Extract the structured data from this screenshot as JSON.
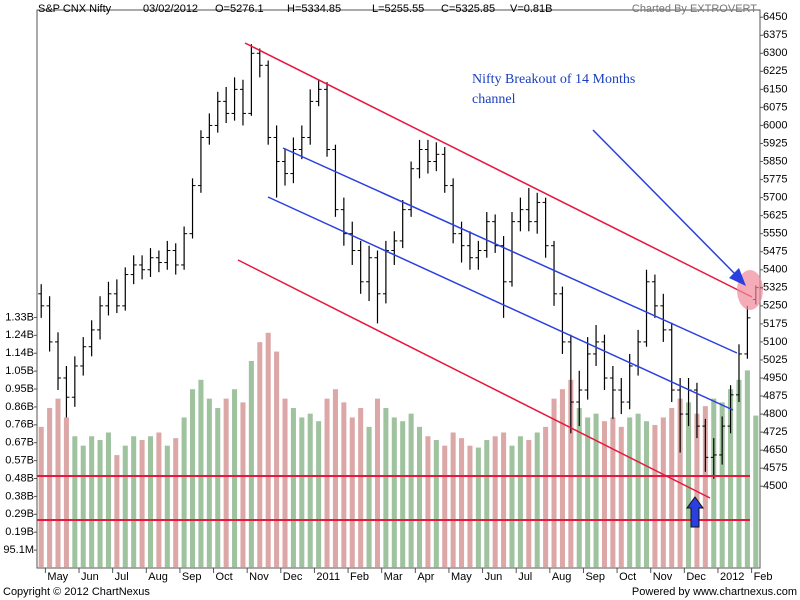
{
  "header": {
    "name": "S&P CNX Nifty",
    "date": "03/02/2012",
    "open": "O=5276.1",
    "high": "H=5334.85",
    "low": "L=5255.55",
    "close": "C=5325.85",
    "volume": "V=0.81B",
    "credit": "Charted By EXTROVERT"
  },
  "footer": {
    "copyright": "Copyright © 2012 ChartNexus",
    "powered": "Powered by www.chartnexus.com"
  },
  "chart_data": {
    "type": "ohlc",
    "annotations": [
      "Nifty Breakout of 14 Months",
      "channel"
    ],
    "categories": [
      null,
      "May",
      null,
      null,
      null,
      "Jun",
      null,
      null,
      null,
      "Jul",
      null,
      null,
      null,
      "Aug",
      null,
      null,
      null,
      "Sep",
      null,
      null,
      null,
      "Oct",
      null,
      null,
      null,
      "Nov",
      null,
      null,
      null,
      "Dec",
      null,
      null,
      null,
      "2011",
      null,
      null,
      null,
      "Feb",
      null,
      null,
      null,
      "Mar",
      null,
      null,
      null,
      "Apr",
      null,
      null,
      null,
      "May",
      null,
      null,
      null,
      "Jun",
      null,
      null,
      null,
      "Jul",
      null,
      null,
      null,
      "Aug",
      null,
      null,
      null,
      "Sep",
      null,
      null,
      null,
      "Oct",
      null,
      null,
      null,
      "Nov",
      null,
      null,
      null,
      "Dec",
      null,
      null,
      null,
      "2012",
      null,
      null,
      null,
      "Feb"
    ],
    "open": [
      5300,
      5250,
      5100,
      4950,
      4870,
      5000,
      5080,
      5150,
      5250,
      5300,
      5250,
      5380,
      5420,
      5400,
      5450,
      5430,
      5480,
      5420,
      5550,
      5750,
      5950,
      6000,
      6100,
      6050,
      6150,
      6050,
      6300,
      6250,
      5950,
      5850,
      5800,
      5900,
      5950,
      6100,
      6150,
      5900,
      5650,
      5550,
      5480,
      5350,
      5450,
      5300,
      5480,
      5520,
      5650,
      5820,
      5900,
      5850,
      5880,
      5750,
      5550,
      5500,
      5450,
      5480,
      5600,
      5500,
      5350,
      5600,
      5650,
      5600,
      5680,
      5500,
      5300,
      5100,
      4850,
      4900,
      5050,
      5100,
      4950,
      4900,
      4850,
      5000,
      5100,
      5350,
      5250,
      5150,
      4900,
      4800,
      4900,
      4750,
      4620,
      4630,
      4750,
      4880,
      5050,
      5276.1
    ],
    "high": [
      5340,
      5290,
      5140,
      5000,
      5040,
      5120,
      5190,
      5290,
      5350,
      5360,
      5410,
      5460,
      5460,
      5490,
      5480,
      5520,
      5510,
      5580,
      5780,
      5980,
      6050,
      6140,
      6160,
      6200,
      6190,
      6338,
      6320,
      6270,
      6000,
      5900,
      5950,
      6000,
      6150,
      6190,
      6180,
      5920,
      5700,
      5600,
      5520,
      5500,
      5480,
      5520,
      5560,
      5690,
      5850,
      5940,
      5940,
      5930,
      5910,
      5780,
      5600,
      5560,
      5520,
      5640,
      5630,
      5540,
      5640,
      5700,
      5740,
      5720,
      5700,
      5520,
      5330,
      5130,
      4980,
      5120,
      5170,
      5130,
      5000,
      4950,
      5050,
      5150,
      5400,
      5380,
      5300,
      5180,
      4950,
      4950,
      4930,
      4780,
      4700,
      4790,
      4920,
      5090,
      5250,
      5334.85
    ],
    "low": [
      5200,
      5060,
      4900,
      4786,
      4830,
      4960,
      5040,
      5110,
      5210,
      5220,
      5230,
      5340,
      5360,
      5370,
      5390,
      5400,
      5380,
      5400,
      5530,
      5720,
      5920,
      5970,
      6010,
      6020,
      6000,
      6040,
      6200,
      5920,
      5700,
      5750,
      5760,
      5860,
      5920,
      6080,
      5870,
      5620,
      5500,
      5420,
      5300,
      5270,
      5177,
      5260,
      5420,
      5490,
      5620,
      5780,
      5800,
      5810,
      5720,
      5510,
      5430,
      5400,
      5400,
      5450,
      5470,
      5200,
      5330,
      5560,
      5560,
      5550,
      5450,
      5250,
      5050,
      4720,
      4750,
      4860,
      5000,
      4900,
      4780,
      4800,
      4820,
      4960,
      5080,
      5200,
      5100,
      4850,
      4640,
      4750,
      4700,
      4560,
      4531,
      4590,
      4720,
      4850,
      5030,
      5255.55
    ],
    "close": [
      5250,
      5100,
      4950,
      4870,
      5000,
      5080,
      5150,
      5250,
      5300,
      5250,
      5380,
      5420,
      5400,
      5450,
      5430,
      5480,
      5420,
      5550,
      5750,
      5950,
      6000,
      6100,
      6050,
      6150,
      6050,
      6300,
      6250,
      5950,
      5850,
      5800,
      5900,
      5950,
      6100,
      6150,
      5900,
      5650,
      5550,
      5480,
      5350,
      5450,
      5300,
      5480,
      5520,
      5650,
      5820,
      5900,
      5850,
      5880,
      5750,
      5550,
      5500,
      5450,
      5480,
      5600,
      5500,
      5350,
      5600,
      5650,
      5600,
      5680,
      5500,
      5300,
      5100,
      4850,
      4900,
      5050,
      5100,
      4950,
      4900,
      4850,
      5000,
      5100,
      5350,
      5250,
      5150,
      4900,
      4800,
      4900,
      4750,
      4620,
      4630,
      4750,
      4880,
      5050,
      5200,
      5325.85
    ],
    "volume": [
      750000000,
      850000000,
      900000000,
      800000000,
      700000000,
      650000000,
      700000000,
      680000000,
      720000000,
      600000000,
      650000000,
      700000000,
      680000000,
      700000000,
      720000000,
      650000000,
      690000000,
      800000000,
      950000000,
      1000000000,
      900000000,
      850000000,
      900000000,
      950000000,
      880000000,
      1100000000,
      1200000000,
      1250000000,
      1150000000,
      900000000,
      850000000,
      800000000,
      820000000,
      780000000,
      900000000,
      950000000,
      880000000,
      800000000,
      850000000,
      750000000,
      900000000,
      850000000,
      800000000,
      780000000,
      820000000,
      750000000,
      700000000,
      680000000,
      650000000,
      720000000,
      690000000,
      650000000,
      640000000,
      680000000,
      700000000,
      720000000,
      650000000,
      700000000,
      680000000,
      720000000,
      750000000,
      900000000,
      950000000,
      1000000000,
      850000000,
      800000000,
      820000000,
      780000000,
      800000000,
      750000000,
      800000000,
      820000000,
      780000000,
      760000000,
      800000000,
      850000000,
      900000000,
      880000000,
      820000000,
      860000000,
      900000000,
      880000000,
      950000000,
      1000000000,
      1050000000,
      810000000
    ],
    "ylim": [
      4160,
      6480
    ],
    "yticks": [
      6450,
      6375,
      6300,
      6225,
      6150,
      6075,
      6000,
      5925,
      5850,
      5775,
      5700,
      5625,
      5550,
      5475,
      5400,
      5325,
      5250,
      5175,
      5100,
      5025,
      4950,
      4875,
      4800,
      4725,
      4650,
      4575,
      4500
    ],
    "y2lim": [
      0,
      2965000000
    ],
    "y2ticks": [
      {
        "value": 1331400000,
        "label": "1.33B"
      },
      {
        "value": 1236300000,
        "label": "1.24B"
      },
      {
        "value": 1141200000,
        "label": "1.14B"
      },
      {
        "value": 1046100000,
        "label": "1.05B"
      },
      {
        "value": 951000000,
        "label": "0.95B"
      },
      {
        "value": 855900000,
        "label": "0.86B"
      },
      {
        "value": 760800000,
        "label": "0.76B"
      },
      {
        "value": 665700000,
        "label": "0.67B"
      },
      {
        "value": 570600000,
        "label": "0.57B"
      },
      {
        "value": 475500000,
        "label": "0.48B"
      },
      {
        "value": 380400000,
        "label": "0.38B"
      },
      {
        "value": 285300000,
        "label": "0.29B"
      },
      {
        "value": 190200000,
        "label": "0.19B"
      },
      {
        "value": 95100000,
        "label": "95.1M"
      }
    ],
    "bar_color": "#000000",
    "volume_up_color": "#7fae7f",
    "volume_down_color": "#d08a8a"
  }
}
